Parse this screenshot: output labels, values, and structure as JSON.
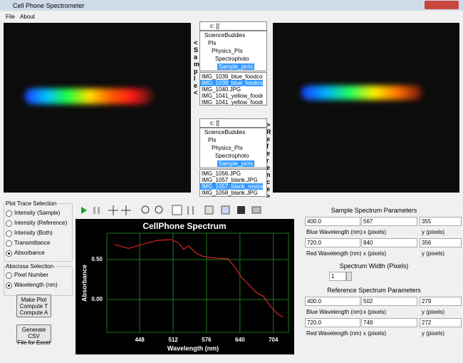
{
  "window": {
    "title": "Cell Phone Spectrometer"
  },
  "menu": [
    "File",
    "About"
  ],
  "sample_label": "<Sample<",
  "reference_label": ">Reference>",
  "sample_browser": {
    "drive": "c: []",
    "folders": [
      "ScienceBuddies",
      "PIs",
      "Physics_PIs",
      "Spectrophoto",
      "Sample_picts"
    ],
    "selected_folder": 4,
    "files": [
      "IMG_1039_blue_foodcolo",
      "IMG_1039_blue_foodcolo",
      "IMG_1040.JPG",
      "IMG_1041_yellow_foodco",
      "IMG_1041_yellow_foodco"
    ],
    "selected_file": 1
  },
  "reference_browser": {
    "drive": "c: []",
    "folders": [
      "ScienceBuddies",
      "PIs",
      "Physics_PIs",
      "Spectrophoto",
      "Sample_picts"
    ],
    "selected_folder": 4,
    "files": [
      "IMG_1056.JPG",
      "IMG_1057_blank.JPG",
      "IMG_1057_blank_resized.",
      "IMG_1058_blank.JPG",
      "IMG_1059_blank.JPG"
    ],
    "selected_file": 2
  },
  "plot_trace_selection": {
    "title": "Plot Trace Selection",
    "options": [
      "Intensity (Sample)",
      "Intensity (Reference)",
      "Intensity (Both)",
      "Transmittance",
      "Absorbance"
    ],
    "selected": 4
  },
  "abscissa_selection": {
    "title": "Abscissa Selection",
    "options": [
      "Pixel Number",
      "Wavelength (nm)"
    ],
    "selected": 1
  },
  "buttons": {
    "make_plot": "Make Plot\nCompute T\nCompute A",
    "generate_csv": "Generate CSV\nFile for Excel"
  },
  "sample_parameters": {
    "title": "Sample Spectrum Parameters",
    "blue": {
      "wavelength": "400.0",
      "x": "567",
      "y": "355",
      "label": "Blue Wavelength (nm)",
      "x_label": "x (pixels)",
      "y_label": "y (pixels)"
    },
    "red": {
      "wavelength": "720.0",
      "x": "840",
      "y": "356",
      "label": "Red Wavelength (nm)",
      "x_label": "x (pixels)",
      "y_label": "y (pixels)"
    }
  },
  "spectrum_width": {
    "label": "Spectrum Width (Pixels)",
    "value": "1"
  },
  "reference_parameters": {
    "title": "Reference Spectrum Parameters",
    "blue": {
      "wavelength": "400.0",
      "x": "502",
      "y": "279",
      "label": "Blue Wavelength (nm)",
      "x_label": "x (pixels)",
      "y_label": "y (pixels)"
    },
    "red": {
      "wavelength": "720.0",
      "x": "749",
      "y": "272",
      "label": "Red Wavelength (nm)",
      "x_label": "x (pixels)",
      "y_label": "y (pixels)"
    }
  },
  "chart_data": {
    "type": "line",
    "title": "CellPhone Spectrum",
    "x_label": "Wavelength (nm)",
    "y_label": "Absorbance",
    "x": [
      399,
      426,
      453,
      481,
      508,
      522,
      532,
      542,
      556,
      569,
      590,
      617,
      631,
      644,
      658,
      671,
      685,
      699,
      712,
      722
    ],
    "values": [
      0.69,
      0.64,
      0.69,
      0.74,
      0.75,
      0.71,
      0.63,
      0.67,
      0.58,
      0.54,
      0.52,
      0.51,
      0.4,
      0.27,
      0.18,
      0.09,
      0.04,
      -0.09,
      -0.18,
      -0.22
    ],
    "color": "#ff2a2a",
    "grid": true,
    "grid_color": "#1f7a1f",
    "xlim": [
      385,
      733
    ],
    "xticks": [
      448,
      512,
      576,
      640,
      704
    ],
    "ylim": [
      -0.41,
      0.83
    ],
    "yticks": [
      {
        "value": 0,
        "label": "0.00"
      },
      {
        "value": 0.5,
        "label": "0.50"
      }
    ]
  }
}
